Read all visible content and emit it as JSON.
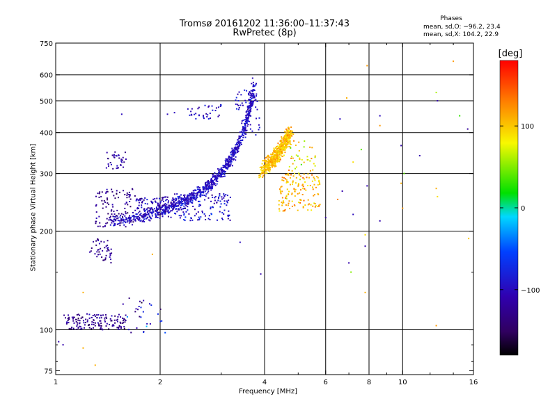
{
  "header": {
    "title_line1": "Tromsø 20161202 11:36:00–11:37:43",
    "title_line2": "RwPretec (8p)"
  },
  "stats": {
    "heading": "Phases",
    "line_o": "mean, sd,O: −96.2, 23.4",
    "line_x": "mean, sd,X: 104.2, 22.9"
  },
  "chart_data": {
    "type": "scatter",
    "title": "Tromsø 20161202 11:36:00–11:37:43",
    "subtitle": "RwPretec (8p)",
    "xlabel": "Frequency [MHz]",
    "ylabel": "Stationary phase Virtual Height [km]",
    "x_scale": "log",
    "y_scale": "log",
    "xlim": [
      1,
      16
    ],
    "ylim": [
      73,
      750
    ],
    "x_ticks": [
      {
        "value": 1,
        "label": "1"
      },
      {
        "value": 2,
        "label": "2"
      },
      {
        "value": 4,
        "label": "4"
      },
      {
        "value": 6,
        "label": "6"
      },
      {
        "value": 8,
        "label": "8"
      },
      {
        "value": 10,
        "label": "10"
      },
      {
        "value": 16,
        "label": "16"
      }
    ],
    "x_gridlines": [
      2,
      4,
      6,
      8,
      10
    ],
    "y_ticks": [
      {
        "value": 75,
        "label": "75"
      },
      {
        "value": 100,
        "label": "100"
      },
      {
        "value": 200,
        "label": "200"
      },
      {
        "value": 300,
        "label": "300"
      },
      {
        "value": 400,
        "label": "400"
      },
      {
        "value": 500,
        "label": "500"
      },
      {
        "value": 600,
        "label": "600"
      },
      {
        "value": 750,
        "label": "750"
      }
    ],
    "y_gridlines": [
      100,
      200,
      300,
      400,
      500,
      600
    ],
    "colorbar": {
      "label": "[deg]",
      "range": [
        -180,
        180
      ],
      "ticks": [
        {
          "value": 100,
          "label": "100"
        },
        {
          "value": 0,
          "label": "0"
        },
        {
          "value": -100,
          "label": "−100"
        }
      ]
    },
    "stats": {
      "o_mean": -96.2,
      "o_sd": 23.4,
      "x_mean": 104.2,
      "x_sd": 22.9
    },
    "o_trace": {
      "f0": 1.4,
      "h0": 200,
      "fc": 4.0,
      "h_top": 560,
      "phase": -96
    },
    "x_trace": {
      "f0": 3.9,
      "h0": 222,
      "fc": 5.7,
      "h_top": 400,
      "phase": 104
    },
    "clusters": [
      {
        "f": [
          1.05,
          1.6
        ],
        "h": [
          100,
          112
        ],
        "n": 150,
        "phase": -125,
        "spread": 20
      },
      {
        "f": [
          1.55,
          2.1
        ],
        "h": [
          98,
          125
        ],
        "n": 30,
        "phase": -95,
        "spread": 60
      },
      {
        "f": [
          1.25,
          1.45
        ],
        "h": [
          160,
          190
        ],
        "n": 45,
        "phase": -125,
        "spread": 20
      },
      {
        "f": [
          1.3,
          1.7
        ],
        "h": [
          205,
          270
        ],
        "n": 110,
        "phase": -125,
        "spread": 20
      },
      {
        "f": [
          1.4,
          1.6
        ],
        "h": [
          310,
          350
        ],
        "n": 35,
        "phase": -120,
        "spread": 25
      },
      {
        "f": [
          1.7,
          2.2
        ],
        "h": [
          215,
          255
        ],
        "n": 120,
        "phase": -110,
        "spread": 25
      },
      {
        "f": [
          2.2,
          3.2
        ],
        "h": [
          215,
          260
        ],
        "n": 140,
        "phase": -95,
        "spread": 25
      },
      {
        "f": [
          2.4,
          3.0
        ],
        "h": [
          440,
          490
        ],
        "n": 35,
        "phase": -100,
        "spread": 20
      },
      {
        "f": [
          3.3,
          3.9
        ],
        "h": [
          470,
          540
        ],
        "n": 45,
        "phase": -95,
        "spread": 20
      },
      {
        "f": [
          3.5,
          3.9
        ],
        "h": [
          390,
          450
        ],
        "n": 15,
        "phase": -95,
        "spread": 20
      },
      {
        "f": [
          4.4,
          5.8
        ],
        "h": [
          230,
          300
        ],
        "n": 140,
        "phase": 110,
        "spread": 25
      },
      {
        "f": [
          4.6,
          5.6
        ],
        "h": [
          300,
          380
        ],
        "n": 40,
        "phase": 90,
        "spread": 40
      }
    ],
    "outliers": [
      {
        "x": 7.9,
        "y": 640,
        "phase": 120
      },
      {
        "x": 14.0,
        "y": 660,
        "phase": 120
      },
      {
        "x": 12.5,
        "y": 530,
        "phase": 60
      },
      {
        "x": 12.6,
        "y": 500,
        "phase": -110
      },
      {
        "x": 14.6,
        "y": 450,
        "phase": 30
      },
      {
        "x": 15.4,
        "y": 410,
        "phase": -120
      },
      {
        "x": 6.9,
        "y": 510,
        "phase": 110
      },
      {
        "x": 8.6,
        "y": 450,
        "phase": -100
      },
      {
        "x": 8.6,
        "y": 420,
        "phase": 120
      },
      {
        "x": 6.6,
        "y": 440,
        "phase": -100
      },
      {
        "x": 11.2,
        "y": 340,
        "phase": -110
      },
      {
        "x": 9.9,
        "y": 365,
        "phase": -110
      },
      {
        "x": 7.6,
        "y": 355,
        "phase": 40
      },
      {
        "x": 7.2,
        "y": 325,
        "phase": 90
      },
      {
        "x": 10.1,
        "y": 300,
        "phase": 40
      },
      {
        "x": 9.9,
        "y": 280,
        "phase": 110
      },
      {
        "x": 12.5,
        "y": 270,
        "phase": 110
      },
      {
        "x": 6.7,
        "y": 265,
        "phase": -110
      },
      {
        "x": 7.9,
        "y": 275,
        "phase": -110
      },
      {
        "x": 12.6,
        "y": 255,
        "phase": 90
      },
      {
        "x": 6.5,
        "y": 250,
        "phase": 130
      },
      {
        "x": 10.0,
        "y": 235,
        "phase": 120
      },
      {
        "x": 7.2,
        "y": 225,
        "phase": -100
      },
      {
        "x": 6.0,
        "y": 220,
        "phase": -120
      },
      {
        "x": 8.6,
        "y": 215,
        "phase": -110
      },
      {
        "x": 7.8,
        "y": 195,
        "phase": 90
      },
      {
        "x": 7.8,
        "y": 180,
        "phase": -110
      },
      {
        "x": 15.5,
        "y": 190,
        "phase": 100
      },
      {
        "x": 7.0,
        "y": 160,
        "phase": -110
      },
      {
        "x": 7.1,
        "y": 150,
        "phase": 50
      },
      {
        "x": 7.8,
        "y": 130,
        "phase": 110
      },
      {
        "x": 12.5,
        "y": 103,
        "phase": 120
      },
      {
        "x": 3.9,
        "y": 148,
        "phase": -110
      },
      {
        "x": 3.4,
        "y": 185,
        "phase": -100
      },
      {
        "x": 1.3,
        "y": 78,
        "phase": 110
      },
      {
        "x": 1.2,
        "y": 88,
        "phase": 110
      },
      {
        "x": 1.02,
        "y": 92,
        "phase": -110
      },
      {
        "x": 1.05,
        "y": 90,
        "phase": -110
      },
      {
        "x": 1.55,
        "y": 455,
        "phase": -100
      },
      {
        "x": 1.2,
        "y": 130,
        "phase": 110
      },
      {
        "x": 1.9,
        "y": 170,
        "phase": 110
      },
      {
        "x": 2.1,
        "y": 455,
        "phase": -100
      },
      {
        "x": 2.2,
        "y": 460,
        "phase": -100
      }
    ]
  }
}
